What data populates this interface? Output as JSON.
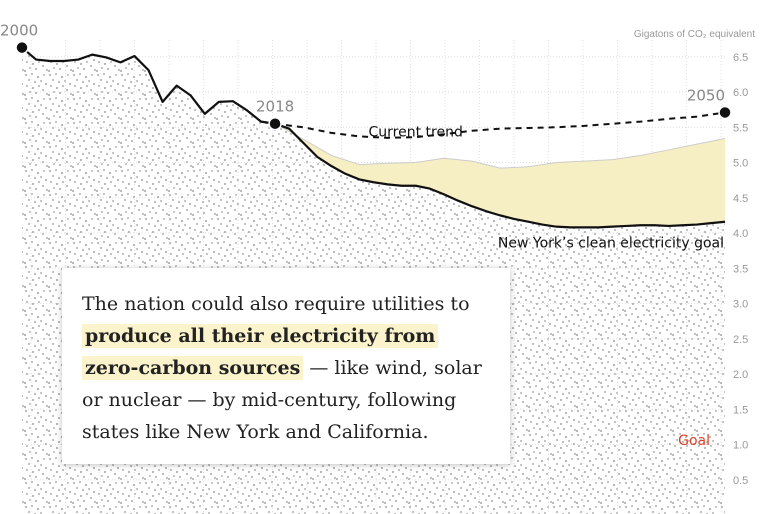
{
  "chart_data": {
    "type": "line",
    "unit_label": "Gigatons of CO₂ equivalent",
    "y_ticks": [
      "6.5",
      "6.0",
      "5.5",
      "5.0",
      "4.5",
      "4.0",
      "3.5",
      "3.0",
      "2.5",
      "2.0",
      "1.5",
      "1.0",
      "0.5"
    ],
    "ylim": [
      0,
      6.5
    ],
    "xlim": [
      2000,
      2050
    ],
    "grid": true,
    "series": [
      {
        "name": "",
        "style": "solid",
        "points": [
          [
            2000,
            6.63
          ],
          [
            2001,
            6.46
          ],
          [
            2002,
            6.44
          ],
          [
            2003,
            6.44
          ],
          [
            2004,
            6.46
          ],
          [
            2005,
            6.53
          ],
          [
            2006,
            6.49
          ],
          [
            2007,
            6.42
          ],
          [
            2008,
            6.51
          ],
          [
            2009,
            6.31
          ],
          [
            2010,
            5.86
          ],
          [
            2011,
            6.09
          ],
          [
            2012,
            5.95
          ],
          [
            2013,
            5.69
          ],
          [
            2014,
            5.86
          ],
          [
            2015,
            5.87
          ],
          [
            2016,
            5.74
          ],
          [
            2017,
            5.58
          ],
          [
            2018,
            5.55
          ]
        ]
      },
      {
        "name": "Current trend",
        "style": "dashed",
        "points": [
          [
            2018,
            5.55
          ],
          [
            2020,
            5.5
          ],
          [
            2022,
            5.42
          ],
          [
            2024,
            5.37
          ],
          [
            2026,
            5.35
          ],
          [
            2028,
            5.36
          ],
          [
            2030,
            5.4
          ],
          [
            2032,
            5.45
          ],
          [
            2034,
            5.48
          ],
          [
            2036,
            5.49
          ],
          [
            2038,
            5.5
          ],
          [
            2040,
            5.52
          ],
          [
            2042,
            5.55
          ],
          [
            2044,
            5.58
          ],
          [
            2046,
            5.62
          ],
          [
            2048,
            5.65
          ],
          [
            2050,
            5.71
          ]
        ]
      },
      {
        "name": "New York’s clean electricity goal",
        "style": "solid",
        "points": [
          [
            2018,
            5.55
          ],
          [
            2019,
            5.48
          ],
          [
            2020,
            5.28
          ],
          [
            2021,
            5.08
          ],
          [
            2022,
            4.95
          ],
          [
            2023,
            4.84
          ],
          [
            2024,
            4.76
          ],
          [
            2025,
            4.72
          ],
          [
            2026,
            4.69
          ],
          [
            2027,
            4.67
          ],
          [
            2028,
            4.67
          ],
          [
            2029,
            4.63
          ],
          [
            2030,
            4.55
          ],
          [
            2031,
            4.46
          ],
          [
            2032,
            4.38
          ],
          [
            2033,
            4.31
          ],
          [
            2034,
            4.25
          ],
          [
            2035,
            4.2
          ],
          [
            2036,
            4.16
          ],
          [
            2037,
            4.12
          ],
          [
            2038,
            4.09
          ],
          [
            2039,
            4.08
          ],
          [
            2040,
            4.08
          ],
          [
            2041,
            4.08
          ],
          [
            2042,
            4.09
          ],
          [
            2043,
            4.1
          ],
          [
            2044,
            4.11
          ],
          [
            2045,
            4.11
          ],
          [
            2046,
            4.1
          ],
          [
            2047,
            4.11
          ],
          [
            2048,
            4.12
          ],
          [
            2049,
            4.14
          ],
          [
            2050,
            4.16
          ]
        ]
      },
      {
        "name": "",
        "style": "area-upper",
        "points": [
          [
            2018,
            5.55
          ],
          [
            2020,
            5.33
          ],
          [
            2022,
            5.1
          ],
          [
            2024,
            4.97
          ],
          [
            2026,
            4.99
          ],
          [
            2028,
            5.0
          ],
          [
            2030,
            5.06
          ],
          [
            2032,
            5.02
          ],
          [
            2034,
            4.92
          ],
          [
            2036,
            4.94
          ],
          [
            2038,
            5.0
          ],
          [
            2040,
            5.02
          ],
          [
            2042,
            5.04
          ],
          [
            2044,
            5.1
          ],
          [
            2046,
            5.18
          ],
          [
            2048,
            5.26
          ],
          [
            2050,
            5.34
          ]
        ]
      }
    ],
    "markers": [
      {
        "year": 2000,
        "value": 6.63,
        "label": "2000"
      },
      {
        "year": 2018,
        "value": 5.55,
        "label": "2018"
      },
      {
        "year": 2050,
        "value": 5.71,
        "label": "2050"
      }
    ],
    "annotations": [
      {
        "text": "Current trend",
        "at": [
          2028,
          5.37
        ]
      },
      {
        "text": "New York’s clean electricity goal",
        "at": [
          2050,
          3.85
        ]
      },
      {
        "text": "Goal",
        "at": [
          2050,
          1.05
        ],
        "color": "#d9412b"
      }
    ],
    "colors": {
      "line": "#111111",
      "area_fill": "#f6efc4",
      "area_stroke": "#cccccc",
      "noise": "#b9b9b9",
      "goal": "#d9412b"
    }
  },
  "callout": {
    "text_before": "The nation could also require utilities to",
    "highlight": "produce all their electricity from zero-carbon sources",
    "text_after": "— like wind, solar or nuclear — by mid-century, following states like New York and California."
  }
}
